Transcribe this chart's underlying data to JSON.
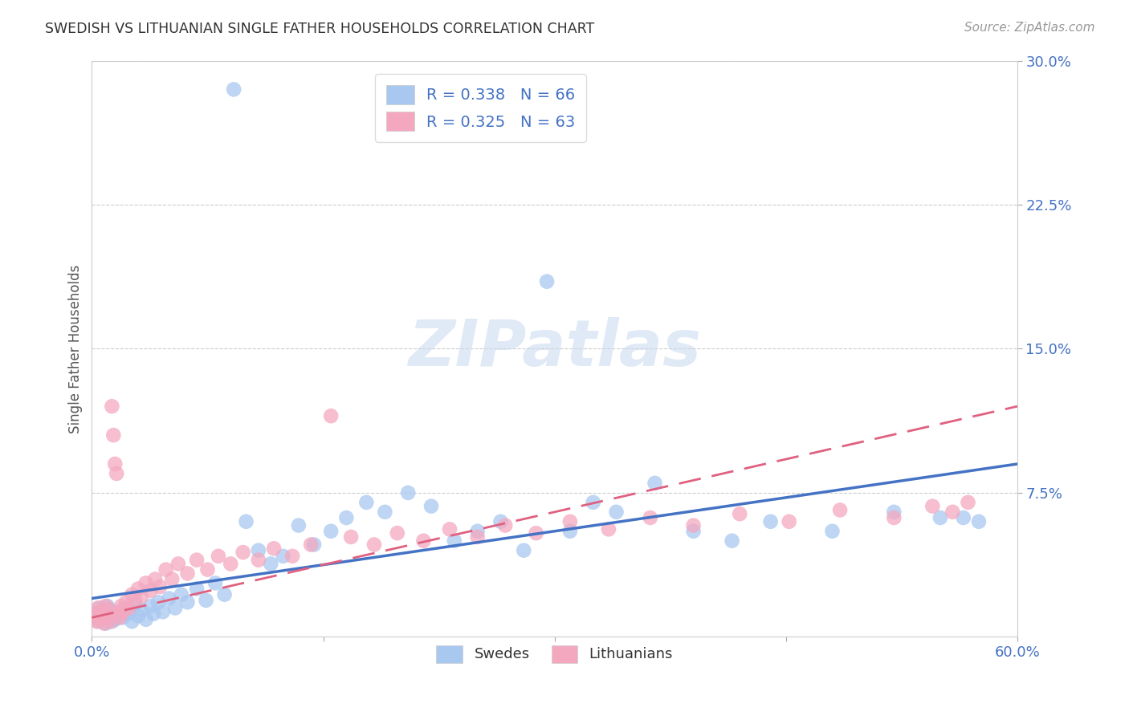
{
  "title": "SWEDISH VS LITHUANIAN SINGLE FATHER HOUSEHOLDS CORRELATION CHART",
  "source": "Source: ZipAtlas.com",
  "ylabel": "Single Father Households",
  "xlim": [
    0.0,
    0.6
  ],
  "ylim": [
    0.0,
    0.3
  ],
  "yticks": [
    0.075,
    0.15,
    0.225,
    0.3
  ],
  "xticks": [
    0.0,
    0.15,
    0.3,
    0.45,
    0.6
  ],
  "xtick_labels_show": [
    true,
    false,
    false,
    false,
    true
  ],
  "swedish_color": "#a8c8f0",
  "lithuanian_color": "#f4a8c0",
  "swedish_line_color": "#4472c4",
  "lithuanian_line_color": "#e06080",
  "watermark_text": "ZIPatlas",
  "legend_label1": "R = 0.338   N = 66",
  "legend_label2": "R = 0.325   N = 63",
  "legend_bottom_label1": "Swedes",
  "legend_bottom_label2": "Lithuanians",
  "background_color": "#ffffff",
  "grid_color": "#cccccc",
  "swedish_x": [
    0.002,
    0.003,
    0.004,
    0.005,
    0.006,
    0.007,
    0.008,
    0.009,
    0.01,
    0.011,
    0.012,
    0.013,
    0.014,
    0.015,
    0.016,
    0.018,
    0.02,
    0.022,
    0.024,
    0.026,
    0.028,
    0.03,
    0.032,
    0.035,
    0.038,
    0.04,
    0.043,
    0.046,
    0.05,
    0.054,
    0.058,
    0.062,
    0.068,
    0.074,
    0.08,
    0.086,
    0.092,
    0.1,
    0.108,
    0.116,
    0.124,
    0.134,
    0.144,
    0.155,
    0.165,
    0.178,
    0.19,
    0.205,
    0.22,
    0.235,
    0.25,
    0.265,
    0.28,
    0.295,
    0.31,
    0.325,
    0.34,
    0.365,
    0.39,
    0.415,
    0.44,
    0.48,
    0.52,
    0.55,
    0.565,
    0.575
  ],
  "swedish_y": [
    0.01,
    0.012,
    0.008,
    0.015,
    0.009,
    0.011,
    0.013,
    0.007,
    0.016,
    0.01,
    0.014,
    0.008,
    0.012,
    0.009,
    0.011,
    0.013,
    0.01,
    0.015,
    0.012,
    0.008,
    0.017,
    0.011,
    0.014,
    0.009,
    0.016,
    0.012,
    0.018,
    0.013,
    0.02,
    0.015,
    0.022,
    0.018,
    0.025,
    0.019,
    0.028,
    0.022,
    0.285,
    0.06,
    0.045,
    0.038,
    0.042,
    0.058,
    0.048,
    0.055,
    0.062,
    0.07,
    0.065,
    0.075,
    0.068,
    0.05,
    0.055,
    0.06,
    0.045,
    0.185,
    0.055,
    0.07,
    0.065,
    0.08,
    0.055,
    0.05,
    0.06,
    0.055,
    0.065,
    0.062,
    0.062,
    0.06
  ],
  "lithuanian_x": [
    0.001,
    0.002,
    0.003,
    0.004,
    0.005,
    0.006,
    0.007,
    0.008,
    0.009,
    0.01,
    0.011,
    0.012,
    0.013,
    0.014,
    0.015,
    0.016,
    0.017,
    0.018,
    0.019,
    0.02,
    0.022,
    0.024,
    0.026,
    0.028,
    0.03,
    0.032,
    0.035,
    0.038,
    0.041,
    0.044,
    0.048,
    0.052,
    0.056,
    0.062,
    0.068,
    0.075,
    0.082,
    0.09,
    0.098,
    0.108,
    0.118,
    0.13,
    0.142,
    0.155,
    0.168,
    0.183,
    0.198,
    0.215,
    0.232,
    0.25,
    0.268,
    0.288,
    0.31,
    0.335,
    0.362,
    0.39,
    0.42,
    0.452,
    0.485,
    0.52,
    0.545,
    0.558,
    0.568
  ],
  "lithuanian_y": [
    0.01,
    0.012,
    0.008,
    0.015,
    0.009,
    0.013,
    0.011,
    0.007,
    0.016,
    0.01,
    0.014,
    0.008,
    0.12,
    0.105,
    0.09,
    0.085,
    0.012,
    0.01,
    0.016,
    0.013,
    0.018,
    0.015,
    0.022,
    0.019,
    0.025,
    0.021,
    0.028,
    0.024,
    0.03,
    0.026,
    0.035,
    0.03,
    0.038,
    0.033,
    0.04,
    0.035,
    0.042,
    0.038,
    0.044,
    0.04,
    0.046,
    0.042,
    0.048,
    0.115,
    0.052,
    0.048,
    0.054,
    0.05,
    0.056,
    0.052,
    0.058,
    0.054,
    0.06,
    0.056,
    0.062,
    0.058,
    0.064,
    0.06,
    0.066,
    0.062,
    0.068,
    0.065,
    0.07
  ],
  "sw_line_x": [
    0.0,
    0.6
  ],
  "sw_line_y": [
    0.02,
    0.09
  ],
  "lt_line_x": [
    0.0,
    0.6
  ],
  "lt_line_y": [
    0.01,
    0.12
  ]
}
